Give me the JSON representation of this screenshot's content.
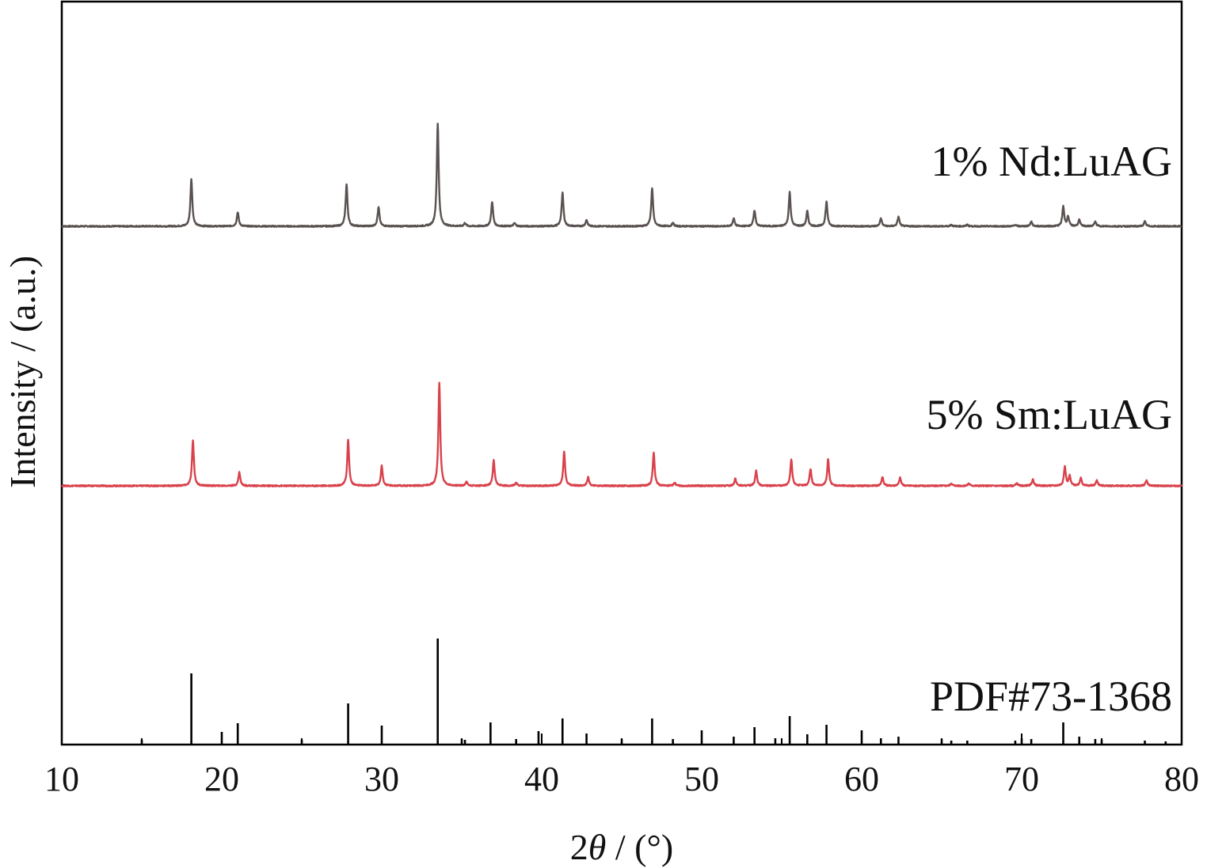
{
  "chart_data": {
    "type": "line",
    "xlabel_prefix": "2",
    "xlabel_symbol": "θ",
    "xlabel_suffix": " / (°)",
    "ylabel": "Intensity / (a.u.)",
    "xlim": [
      10,
      80
    ],
    "x_ticks": [
      10,
      20,
      30,
      40,
      50,
      60,
      70,
      80
    ],
    "x_tick_labels": [
      "10",
      "20",
      "30",
      "40",
      "50",
      "60",
      "70",
      "80"
    ],
    "y_ticks_shown": false,
    "grid": false,
    "series": [
      {
        "name": "1% Nd:LuAG",
        "color": "#5a5250",
        "peaks": [
          {
            "x": 18.1,
            "h": 60
          },
          {
            "x": 21.0,
            "h": 18
          },
          {
            "x": 27.8,
            "h": 53
          },
          {
            "x": 29.8,
            "h": 24
          },
          {
            "x": 33.5,
            "h": 130
          },
          {
            "x": 35.2,
            "h": 4
          },
          {
            "x": 36.9,
            "h": 31
          },
          {
            "x": 38.3,
            "h": 4
          },
          {
            "x": 41.3,
            "h": 42
          },
          {
            "x": 42.8,
            "h": 8
          },
          {
            "x": 46.9,
            "h": 48
          },
          {
            "x": 48.2,
            "h": 4
          },
          {
            "x": 52.0,
            "h": 10
          },
          {
            "x": 53.3,
            "h": 20
          },
          {
            "x": 55.5,
            "h": 43
          },
          {
            "x": 56.6,
            "h": 19
          },
          {
            "x": 57.8,
            "h": 31
          },
          {
            "x": 61.2,
            "h": 10
          },
          {
            "x": 62.3,
            "h": 12
          },
          {
            "x": 65.6,
            "h": 2
          },
          {
            "x": 66.6,
            "h": 2
          },
          {
            "x": 69.6,
            "h": 2
          },
          {
            "x": 70.6,
            "h": 6
          },
          {
            "x": 72.6,
            "h": 25
          },
          {
            "x": 72.9,
            "h": 12
          },
          {
            "x": 73.6,
            "h": 8
          },
          {
            "x": 74.6,
            "h": 6
          },
          {
            "x": 77.7,
            "h": 6
          }
        ]
      },
      {
        "name": "5% Sm:LuAG",
        "color": "#d9414b",
        "peaks": [
          {
            "x": 18.2,
            "h": 57
          },
          {
            "x": 21.1,
            "h": 17
          },
          {
            "x": 27.9,
            "h": 58
          },
          {
            "x": 30.0,
            "h": 25
          },
          {
            "x": 33.6,
            "h": 130
          },
          {
            "x": 35.3,
            "h": 5
          },
          {
            "x": 37.0,
            "h": 32
          },
          {
            "x": 38.4,
            "h": 4
          },
          {
            "x": 41.4,
            "h": 43
          },
          {
            "x": 42.9,
            "h": 11
          },
          {
            "x": 47.0,
            "h": 42
          },
          {
            "x": 48.3,
            "h": 4
          },
          {
            "x": 52.1,
            "h": 9
          },
          {
            "x": 53.4,
            "h": 19
          },
          {
            "x": 55.6,
            "h": 33
          },
          {
            "x": 56.8,
            "h": 21
          },
          {
            "x": 57.9,
            "h": 33
          },
          {
            "x": 61.3,
            "h": 11
          },
          {
            "x": 62.4,
            "h": 10
          },
          {
            "x": 65.6,
            "h": 3
          },
          {
            "x": 66.7,
            "h": 3
          },
          {
            "x": 69.7,
            "h": 3
          },
          {
            "x": 70.7,
            "h": 8
          },
          {
            "x": 72.7,
            "h": 24
          },
          {
            "x": 73.0,
            "h": 12
          },
          {
            "x": 73.7,
            "h": 10
          },
          {
            "x": 74.7,
            "h": 7
          },
          {
            "x": 77.8,
            "h": 7
          }
        ]
      },
      {
        "name": "PDF#73-1368",
        "color": "#000000",
        "type": "stick",
        "sticks": [
          {
            "x": 15.0,
            "h": 6
          },
          {
            "x": 18.1,
            "h": 90
          },
          {
            "x": 20.0,
            "h": 16
          },
          {
            "x": 21.0,
            "h": 27
          },
          {
            "x": 25.0,
            "h": 6
          },
          {
            "x": 27.9,
            "h": 52
          },
          {
            "x": 30.0,
            "h": 24
          },
          {
            "x": 33.5,
            "h": 134
          },
          {
            "x": 35.0,
            "h": 7
          },
          {
            "x": 35.2,
            "h": 6
          },
          {
            "x": 36.8,
            "h": 28
          },
          {
            "x": 38.4,
            "h": 7
          },
          {
            "x": 39.8,
            "h": 17
          },
          {
            "x": 41.3,
            "h": 33
          },
          {
            "x": 42.8,
            "h": 14
          },
          {
            "x": 45.0,
            "h": 7
          },
          {
            "x": 46.9,
            "h": 33
          },
          {
            "x": 48.2,
            "h": 7
          },
          {
            "x": 50.0,
            "h": 18
          },
          {
            "x": 52.0,
            "h": 10
          },
          {
            "x": 53.3,
            "h": 22
          },
          {
            "x": 54.6,
            "h": 8
          },
          {
            "x": 55.5,
            "h": 36
          },
          {
            "x": 56.6,
            "h": 13
          },
          {
            "x": 57.8,
            "h": 25
          },
          {
            "x": 60.0,
            "h": 18
          },
          {
            "x": 61.2,
            "h": 8
          },
          {
            "x": 62.3,
            "h": 10
          },
          {
            "x": 65.0,
            "h": 7
          },
          {
            "x": 65.6,
            "h": 5
          },
          {
            "x": 66.6,
            "h": 5
          },
          {
            "x": 69.6,
            "h": 5
          },
          {
            "x": 70.0,
            "h": 8
          },
          {
            "x": 70.6,
            "h": 7
          },
          {
            "x": 72.6,
            "h": 28
          },
          {
            "x": 73.6,
            "h": 10
          },
          {
            "x": 74.6,
            "h": 7
          },
          {
            "x": 75.0,
            "h": 6
          },
          {
            "x": 77.7,
            "h": 5
          },
          {
            "x": 79.0,
            "h": 4
          }
        ]
      }
    ]
  }
}
